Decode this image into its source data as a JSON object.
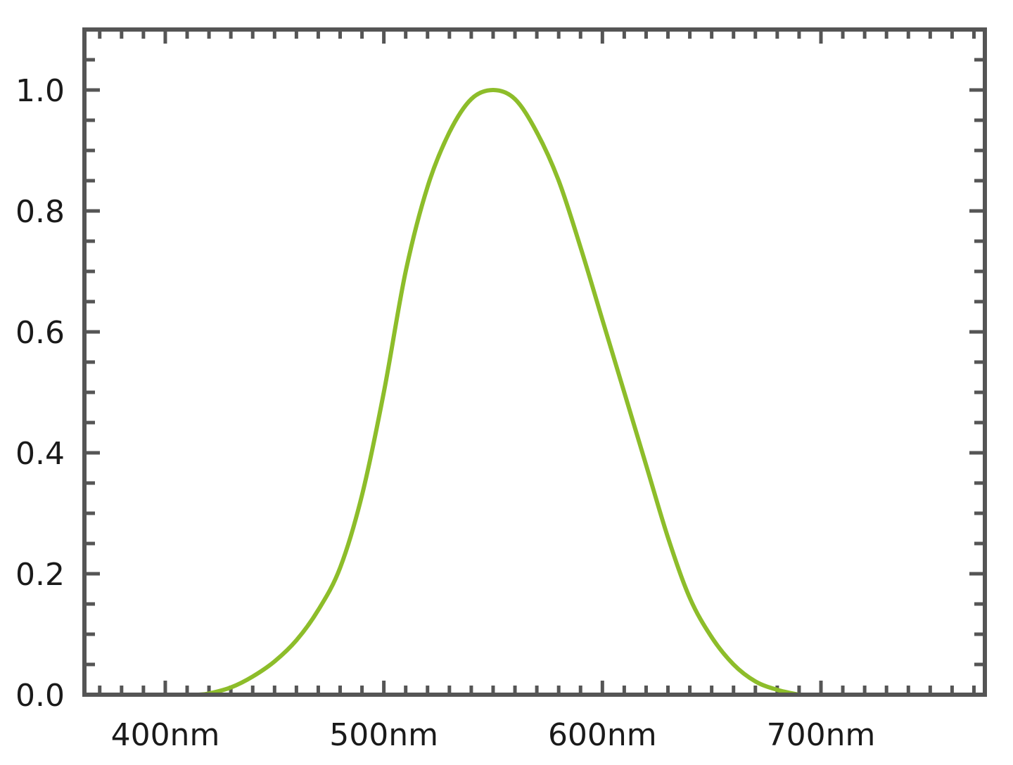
{
  "chart_data": {
    "type": "line",
    "title": "",
    "xlabel": "",
    "ylabel": "",
    "xlim": [
      363,
      775
    ],
    "ylim": [
      0,
      1.1
    ],
    "x_ticks": [
      {
        "value": 400,
        "label": "400nm"
      },
      {
        "value": 500,
        "label": "500nm"
      },
      {
        "value": 600,
        "label": "600nm"
      },
      {
        "value": 700,
        "label": "700nm"
      }
    ],
    "y_ticks": [
      {
        "value": 0.0,
        "label": "0.0"
      },
      {
        "value": 0.2,
        "label": "0.2"
      },
      {
        "value": 0.4,
        "label": "0.4"
      },
      {
        "value": 0.6,
        "label": "0.6"
      },
      {
        "value": 0.8,
        "label": "0.8"
      },
      {
        "value": 1.0,
        "label": "1.0"
      }
    ],
    "x_minor_step": 10,
    "y_minor_step": 0.05,
    "grid": false,
    "legend": "none",
    "colors": {
      "frame": "#555555",
      "curve": "#8dbd2a"
    },
    "series": [
      {
        "values": [
          [
            415,
            0.0
          ],
          [
            420,
            0.002
          ],
          [
            430,
            0.012
          ],
          [
            440,
            0.03
          ],
          [
            450,
            0.055
          ],
          [
            460,
            0.09
          ],
          [
            470,
            0.14
          ],
          [
            480,
            0.21
          ],
          [
            490,
            0.33
          ],
          [
            500,
            0.5
          ],
          [
            510,
            0.7
          ],
          [
            520,
            0.84
          ],
          [
            530,
            0.93
          ],
          [
            540,
            0.985
          ],
          [
            550,
            1.0
          ],
          [
            560,
            0.985
          ],
          [
            570,
            0.93
          ],
          [
            580,
            0.85
          ],
          [
            590,
            0.74
          ],
          [
            600,
            0.62
          ],
          [
            610,
            0.5
          ],
          [
            620,
            0.38
          ],
          [
            630,
            0.26
          ],
          [
            640,
            0.16
          ],
          [
            650,
            0.095
          ],
          [
            660,
            0.05
          ],
          [
            670,
            0.022
          ],
          [
            680,
            0.008
          ],
          [
            690,
            0.0
          ]
        ]
      }
    ]
  }
}
